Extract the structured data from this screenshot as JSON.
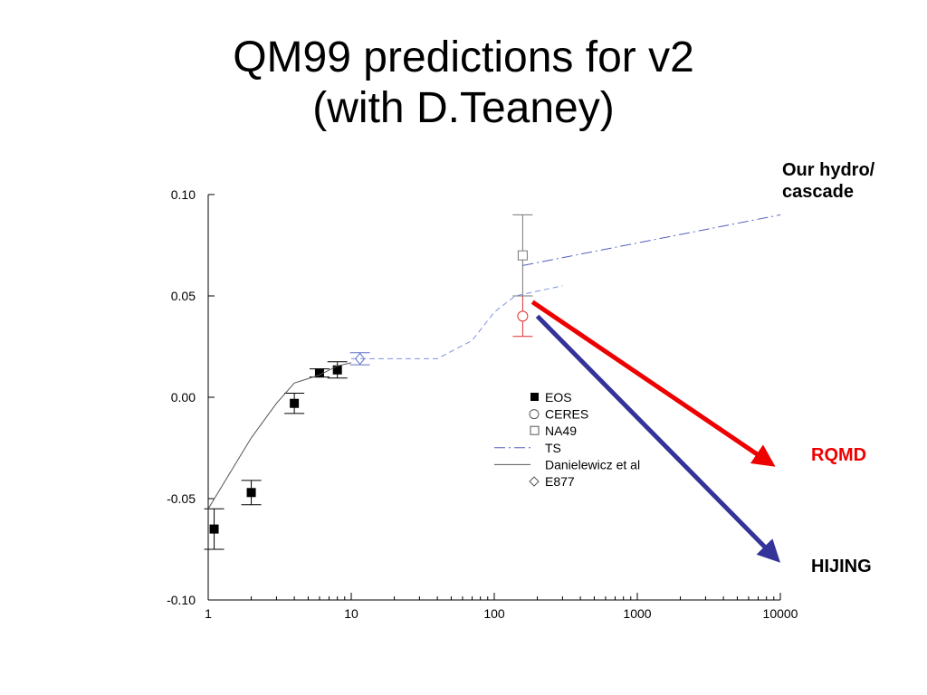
{
  "slide": {
    "title_line1": "QM99 predictions for v2",
    "title_line2": "(with D.Teaney)"
  },
  "annotations": {
    "hydro_line1": "Our hydro/",
    "hydro_line2": "cascade",
    "rqmd": "RQMD",
    "hijing": "HIJING",
    "rqmd_color": "#ee0000",
    "hijing_color": "#333399",
    "rqmd_arrow": {
      "from": [
        185,
        0.047
      ],
      "to": [
        8700,
        -0.033
      ]
    },
    "hijing_arrow": {
      "from": [
        200,
        0.04
      ],
      "to": [
        9500,
        -0.08
      ]
    }
  },
  "chart_data": {
    "type": "scatter",
    "title": "",
    "xlabel": "",
    "ylabel": "",
    "xscale": "log",
    "xlim": [
      1,
      10000
    ],
    "ylim": [
      -0.1,
      0.1
    ],
    "x_ticks": [
      1,
      10,
      100,
      1000,
      10000
    ],
    "x_tick_labels": [
      "1",
      "10",
      "100",
      "1000",
      "10000"
    ],
    "y_ticks": [
      -0.1,
      -0.05,
      0.0,
      0.05,
      0.1
    ],
    "y_tick_labels": [
      "-0.10",
      "-0.05",
      "0.00",
      "0.05",
      "0.10"
    ],
    "grid": false,
    "legend_position": "center-right",
    "series": [
      {
        "name": "EOS",
        "kind": "marker",
        "marker": "filled-square",
        "color": "#000000",
        "points": [
          {
            "x": 1.1,
            "y": -0.065,
            "err": 0.01
          },
          {
            "x": 2.0,
            "y": -0.047,
            "err": 0.006
          },
          {
            "x": 4.0,
            "y": -0.003,
            "err": 0.005
          },
          {
            "x": 6.0,
            "y": 0.012,
            "err": 0.002
          },
          {
            "x": 8.0,
            "y": 0.0135,
            "err": 0.004
          }
        ]
      },
      {
        "name": "CERES",
        "kind": "marker",
        "marker": "open-circle",
        "color": "#e03030",
        "points": [
          {
            "x": 158,
            "y": 0.04,
            "err": 0.01
          }
        ]
      },
      {
        "name": "NA49",
        "kind": "marker",
        "marker": "open-square",
        "color": "#777777",
        "points": [
          {
            "x": 158,
            "y": 0.07,
            "err": 0.02
          }
        ]
      },
      {
        "name": "TS",
        "kind": "line",
        "dash": "dashdot",
        "color": "#5560c0",
        "points": [
          {
            "x": 158,
            "y": 0.065
          },
          {
            "x": 10000,
            "y": 0.09
          }
        ]
      },
      {
        "name": "Danielewicz et al",
        "kind": "line",
        "dash": "solid",
        "color": "#555555",
        "points": [
          {
            "x": 1.0,
            "y": -0.055
          },
          {
            "x": 2.0,
            "y": -0.02
          },
          {
            "x": 3.0,
            "y": -0.003
          },
          {
            "x": 4.0,
            "y": 0.007
          },
          {
            "x": 6.0,
            "y": 0.011
          },
          {
            "x": 8.0,
            "y": 0.0155
          },
          {
            "x": 10.0,
            "y": 0.017
          }
        ]
      },
      {
        "name": "E877",
        "kind": "marker",
        "marker": "open-diamond",
        "color": "#6070c8",
        "points": [
          {
            "x": 11.5,
            "y": 0.019,
            "err": 0.003
          }
        ]
      },
      {
        "name": "",
        "kind": "line",
        "dash": "dashed",
        "color": "#8090e0",
        "points": [
          {
            "x": 10,
            "y": 0.019
          },
          {
            "x": 40,
            "y": 0.019
          },
          {
            "x": 70,
            "y": 0.028
          },
          {
            "x": 100,
            "y": 0.042
          },
          {
            "x": 140,
            "y": 0.05
          },
          {
            "x": 300,
            "y": 0.055
          }
        ]
      }
    ]
  }
}
